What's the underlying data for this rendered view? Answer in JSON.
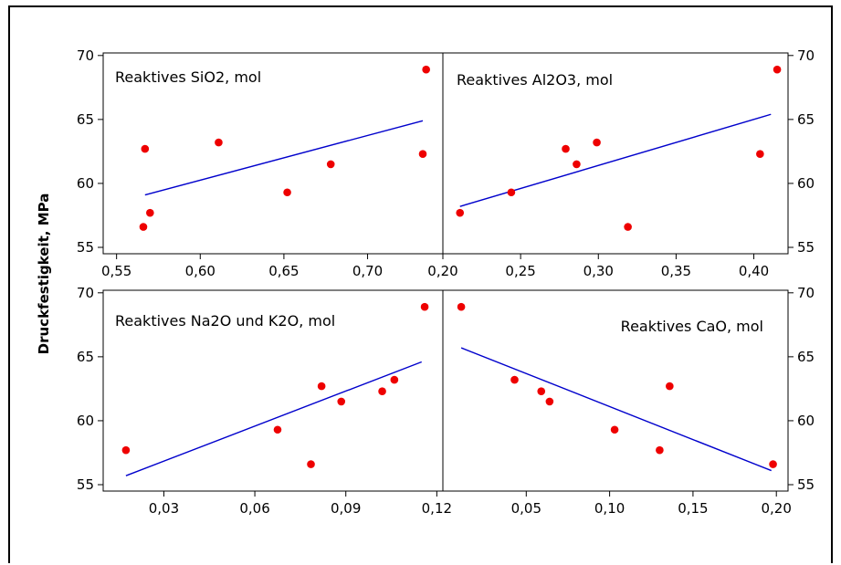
{
  "chart_data": {
    "type": "scatter",
    "ylabel": "Druckfestigkeit, MPa",
    "ylim": [
      54.5,
      70.2
    ],
    "y_ticks": [
      "55",
      "60",
      "65",
      "70"
    ],
    "y_tick_values": [
      55,
      60,
      65,
      70
    ],
    "colors": {
      "points": "#ee0000",
      "fit": "#0000cc",
      "axes": "#000000"
    },
    "panels": [
      {
        "id": "sio2",
        "title": "Reaktives SiO2, mol",
        "xlim": [
          0.542,
          0.745
        ],
        "x_ticks": [
          "0,55",
          "0,60",
          "0,65",
          "0,70"
        ],
        "x_tick_values": [
          0.55,
          0.6,
          0.65,
          0.7
        ],
        "points": [
          {
            "x": 0.566,
            "y": 56.6
          },
          {
            "x": 0.567,
            "y": 62.7
          },
          {
            "x": 0.57,
            "y": 57.7
          },
          {
            "x": 0.611,
            "y": 63.2
          },
          {
            "x": 0.652,
            "y": 59.3
          },
          {
            "x": 0.678,
            "y": 61.5
          },
          {
            "x": 0.733,
            "y": 62.3
          },
          {
            "x": 0.735,
            "y": 68.9
          }
        ],
        "fit": [
          {
            "x": 0.567,
            "y": 59.1
          },
          {
            "x": 0.733,
            "y": 64.9
          }
        ]
      },
      {
        "id": "al2o3",
        "title": "Reaktives Al2O3, mol",
        "xlim": [
          0.2,
          0.422
        ],
        "x_ticks": [
          "0,20",
          "0,25",
          "0,30",
          "0,35",
          "0,40"
        ],
        "x_tick_values": [
          0.2,
          0.25,
          0.3,
          0.35,
          0.4
        ],
        "points": [
          {
            "x": 0.211,
            "y": 57.7
          },
          {
            "x": 0.244,
            "y": 59.3
          },
          {
            "x": 0.279,
            "y": 62.7
          },
          {
            "x": 0.286,
            "y": 61.5
          },
          {
            "x": 0.299,
            "y": 63.2
          },
          {
            "x": 0.319,
            "y": 56.6
          },
          {
            "x": 0.404,
            "y": 62.3
          },
          {
            "x": 0.415,
            "y": 68.9
          }
        ],
        "fit": [
          {
            "x": 0.211,
            "y": 58.2
          },
          {
            "x": 0.411,
            "y": 65.4
          }
        ]
      },
      {
        "id": "na2o-k2o",
        "title": "Reaktives Na2O und K2O, mol",
        "xlim": [
          0.01,
          0.122
        ],
        "x_ticks": [
          "0,03",
          "0,06",
          "0,09",
          "0,12"
        ],
        "x_tick_values": [
          0.03,
          0.06,
          0.09,
          0.12
        ],
        "points": [
          {
            "x": 0.0175,
            "y": 57.7
          },
          {
            "x": 0.0675,
            "y": 59.3
          },
          {
            "x": 0.0785,
            "y": 56.6
          },
          {
            "x": 0.082,
            "y": 62.7
          },
          {
            "x": 0.0885,
            "y": 61.5
          },
          {
            "x": 0.102,
            "y": 62.3
          },
          {
            "x": 0.106,
            "y": 63.2
          },
          {
            "x": 0.116,
            "y": 68.9
          }
        ],
        "fit": [
          {
            "x": 0.0175,
            "y": 55.7
          },
          {
            "x": 0.115,
            "y": 64.6
          }
        ]
      },
      {
        "id": "cao",
        "title": "Reaktives CaO, mol",
        "xlim": [
          0.0,
          0.207
        ],
        "x_ticks": [
          "0,05",
          "0,10",
          "0,15",
          "0,20"
        ],
        "x_tick_values": [
          0.05,
          0.1,
          0.15,
          0.2
        ],
        "points": [
          {
            "x": 0.011,
            "y": 68.9
          },
          {
            "x": 0.043,
            "y": 63.2
          },
          {
            "x": 0.059,
            "y": 62.3
          },
          {
            "x": 0.064,
            "y": 61.5
          },
          {
            "x": 0.103,
            "y": 59.3
          },
          {
            "x": 0.13,
            "y": 57.7
          },
          {
            "x": 0.136,
            "y": 62.7
          },
          {
            "x": 0.198,
            "y": 56.6
          }
        ],
        "fit": [
          {
            "x": 0.011,
            "y": 65.7
          },
          {
            "x": 0.197,
            "y": 56.1
          }
        ]
      }
    ]
  }
}
